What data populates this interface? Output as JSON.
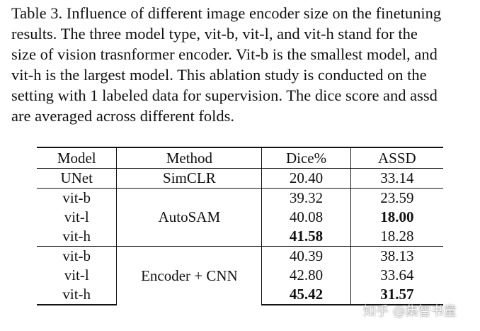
{
  "caption": [
    "Table 3. Influence of different image encoder size on the finetuning",
    "results. The three model type, vit-b, vit-l, and vit-h stand for the",
    "size of vision trasnformer encoder. Vit-b is the smallest model, and",
    "vit-h is the largest model. This ablation study is conducted on the",
    "setting with 1 labeled data for supervision. The dice score and assd",
    "are averaged across different folds."
  ],
  "table": {
    "headers": [
      "Model",
      "Method",
      "Dice%",
      "ASSD"
    ],
    "groups": [
      {
        "method": "SimCLR",
        "rows": [
          {
            "model": "UNet",
            "dice": "20.40",
            "assd": "33.14"
          }
        ]
      },
      {
        "method": "AutoSAM",
        "rows": [
          {
            "model": "vit-b",
            "dice": "39.32",
            "assd": "23.59"
          },
          {
            "model": "vit-l",
            "dice": "40.08",
            "assd": "18.00",
            "assd_bold": true
          },
          {
            "model": "vit-h",
            "dice": "41.58",
            "assd": "18.28",
            "dice_bold": true
          }
        ]
      },
      {
        "method": "Encoder + CNN",
        "rows": [
          {
            "model": "vit-b",
            "dice": "40.39",
            "assd": "38.13"
          },
          {
            "model": "vit-l",
            "dice": "42.80",
            "assd": "33.64"
          },
          {
            "model": "vit-h",
            "dice": "45.42",
            "assd": "31.57",
            "dice_bold": true,
            "assd_bold": true
          }
        ]
      }
    ]
  },
  "watermark": "知乎 @集智书童"
}
